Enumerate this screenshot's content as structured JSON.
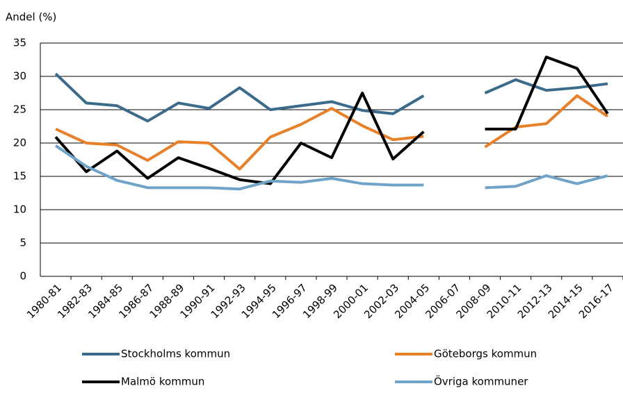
{
  "chart_data": {
    "type": "line",
    "y_label": "Andel (%)",
    "categories": [
      "1980-81",
      "1982-83",
      "1984-85",
      "1986-87",
      "1988-89",
      "1990-91",
      "1992-93",
      "1994-95",
      "1996-97",
      "1998-99",
      "2000-01",
      "2002-03",
      "2004-05",
      "2006-07",
      "2008-09",
      "2010-11",
      "2012-13",
      "2014-15",
      "2016-17"
    ],
    "series": [
      {
        "name": "Stockholms kommun",
        "color": "#3b6a8a",
        "values": [
          30.4,
          26.0,
          25.6,
          23.3,
          26.0,
          25.2,
          28.3,
          25.0,
          25.6,
          26.2,
          24.9,
          24.4,
          27.1,
          null,
          27.5,
          29.5,
          27.9,
          28.3,
          28.9
        ]
      },
      {
        "name": "Göteborgs kommun",
        "color": "#e8802a",
        "values": [
          22.1,
          20.0,
          19.7,
          17.4,
          20.2,
          20.0,
          16.1,
          20.9,
          22.8,
          25.2,
          22.6,
          20.5,
          21.0,
          null,
          19.4,
          22.4,
          22.9,
          27.1,
          24.0
        ]
      },
      {
        "name": "Malmö kommun",
        "color": "#000000",
        "values": [
          20.9,
          15.7,
          18.8,
          14.7,
          17.8,
          16.2,
          14.5,
          13.9,
          20.0,
          17.8,
          27.5,
          17.6,
          21.7,
          null,
          22.1,
          22.1,
          32.9,
          31.2,
          24.4
        ]
      },
      {
        "name": "Övriga kommuner",
        "color": "#6fa3c8",
        "values": [
          19.6,
          16.5,
          14.4,
          13.3,
          13.3,
          13.3,
          13.1,
          14.3,
          14.1,
          14.7,
          13.9,
          13.7,
          13.7,
          null,
          13.3,
          13.5,
          15.1,
          13.9,
          15.1
        ]
      }
    ],
    "ylim": [
      0,
      35
    ],
    "yticks": [
      0,
      5,
      10,
      15,
      20,
      25,
      30,
      35
    ],
    "grid": true
  }
}
